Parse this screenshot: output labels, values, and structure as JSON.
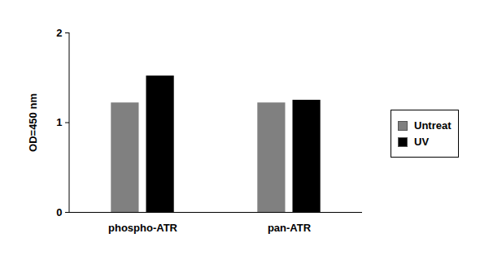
{
  "chart_data": {
    "type": "bar",
    "categories": [
      "phospho-ATR",
      "pan-ATR"
    ],
    "series": [
      {
        "name": "Untreat",
        "color": "#808080",
        "values": [
          1.22,
          1.22
        ]
      },
      {
        "name": "UV",
        "color": "#000000",
        "values": [
          1.52,
          1.25
        ]
      }
    ],
    "y_label": "OD=450 nm",
    "ylim": [
      0,
      2
    ],
    "yticks": [
      0,
      1,
      2
    ],
    "grid": false,
    "legend": "right"
  }
}
